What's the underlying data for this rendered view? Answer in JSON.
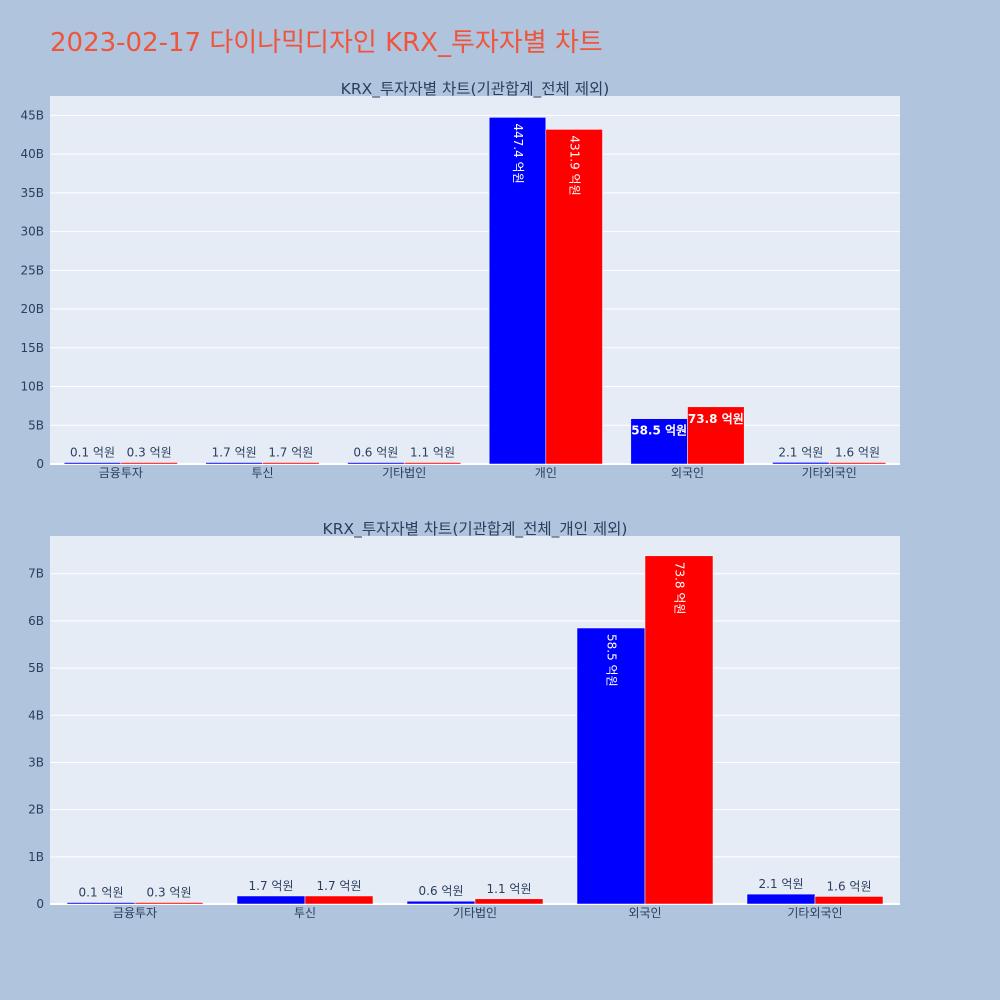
{
  "page": {
    "title": "2023-02-17 다이나믹디자인 KRX_투자자별 차트",
    "title_color": "#ef553b",
    "background": "#b0c4de"
  },
  "chart_data": [
    {
      "type": "bar",
      "title": "KRX_투자자별 차트(기관합계_전체 제외)",
      "categories": [
        "금융투자",
        "투신",
        "기타법인",
        "개인",
        "외국인",
        "기타외국인"
      ],
      "series": [
        {
          "color": "#0000ff",
          "values": [
            10000000,
            170000000,
            60000000,
            44740000000,
            5850000000,
            210000000
          ],
          "labels": [
            "0.1 억원",
            "1.7 억원",
            "0.6 억원",
            "447.4 억원",
            "58.5 억원",
            "2.1 억원"
          ]
        },
        {
          "color": "#ff0000",
          "values": [
            30000000,
            170000000,
            110000000,
            43190000000,
            7380000000,
            160000000
          ],
          "labels": [
            "0.3 억원",
            "1.7 억원",
            "1.1 억원",
            "431.9 억원",
            "73.8 억원",
            "1.6 억원"
          ]
        }
      ],
      "ylim": [
        0,
        47500000000
      ],
      "yticks": [
        0,
        5000000000,
        10000000000,
        15000000000,
        20000000000,
        25000000000,
        30000000000,
        35000000000,
        40000000000,
        45000000000
      ],
      "ytick_labels": [
        "0",
        "5B",
        "10B",
        "15B",
        "20B",
        "25B",
        "30B",
        "35B",
        "40B",
        "45B"
      ],
      "grid": true,
      "plot_bg": "#e5ecf6"
    },
    {
      "type": "bar",
      "title": "KRX_투자자별 차트(기관합계_전체_개인 제외)",
      "categories": [
        "금융투자",
        "투신",
        "기타법인",
        "외국인",
        "기타외국인"
      ],
      "series": [
        {
          "color": "#0000ff",
          "values": [
            10000000,
            170000000,
            60000000,
            5850000000,
            210000000
          ],
          "labels": [
            "0.1 억원",
            "1.7 억원",
            "0.6 억원",
            "58.5 억원",
            "2.1 억원"
          ]
        },
        {
          "color": "#ff0000",
          "values": [
            30000000,
            170000000,
            110000000,
            7380000000,
            160000000
          ],
          "labels": [
            "0.3 억원",
            "1.7 억원",
            "1.1 억원",
            "73.8 억원",
            "1.6 억원"
          ]
        }
      ],
      "ylim": [
        0,
        7800000000
      ],
      "yticks": [
        0,
        1000000000,
        2000000000,
        3000000000,
        4000000000,
        5000000000,
        6000000000,
        7000000000
      ],
      "ytick_labels": [
        "0",
        "1B",
        "2B",
        "3B",
        "4B",
        "5B",
        "6B",
        "7B"
      ],
      "grid": true,
      "plot_bg": "#e5ecf6"
    }
  ]
}
